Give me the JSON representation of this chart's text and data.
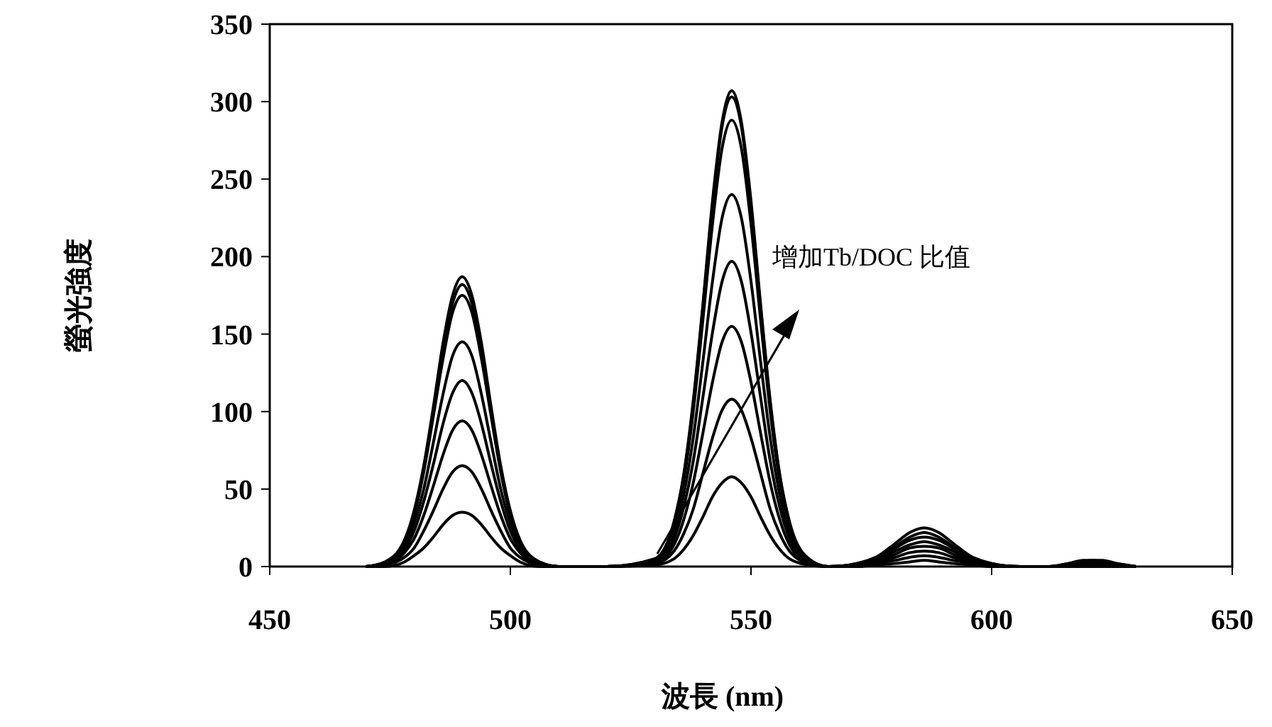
{
  "chart_data": {
    "type": "line",
    "xlabel": "波長 (nm)",
    "ylabel": "螢光強度",
    "xlim": [
      450,
      650
    ],
    "ylim": [
      0,
      350
    ],
    "xticks": [
      450,
      500,
      550,
      600,
      650
    ],
    "yticks": [
      0,
      50,
      100,
      150,
      200,
      250,
      300,
      350
    ],
    "grid": false,
    "marker": "none",
    "line_style": "solid",
    "annotations": [
      "增加Tb/DOC 比值"
    ],
    "x": [
      470,
      474,
      478,
      480,
      482,
      484,
      486,
      488,
      490,
      492,
      494,
      496,
      498,
      500,
      502,
      506,
      510,
      520,
      530,
      534,
      536,
      538,
      540,
      542,
      544,
      546,
      548,
      550,
      552,
      554,
      556,
      558,
      562,
      566,
      572,
      576,
      580,
      583,
      586,
      589,
      592,
      596,
      600,
      606,
      612,
      616,
      619,
      621,
      623,
      626,
      630
    ],
    "series": [
      {
        "color": "#000000",
        "values": [
          0,
          0,
          3,
          7,
          12,
          19,
          27,
          33,
          35,
          33,
          27,
          19,
          12,
          7,
          3,
          0,
          0,
          0,
          1,
          5,
          11,
          20,
          32,
          45,
          54,
          58,
          54,
          45,
          32,
          20,
          11,
          5,
          1,
          0,
          0,
          1,
          2,
          3,
          4,
          3,
          2,
          1,
          0,
          0,
          0,
          0,
          0,
          0,
          0,
          0,
          0
        ]
      },
      {
        "color": "#000000",
        "values": [
          0,
          1,
          6,
          12,
          23,
          36,
          50,
          61,
          65,
          61,
          50,
          36,
          23,
          12,
          6,
          1,
          0,
          0,
          2,
          10,
          21,
          37,
          60,
          83,
          101,
          108,
          101,
          83,
          60,
          37,
          21,
          10,
          2,
          0,
          0,
          2,
          4,
          6,
          7,
          6,
          4,
          2,
          0,
          0,
          0,
          0,
          1,
          1,
          1,
          0,
          0
        ]
      },
      {
        "color": "#000000",
        "values": [
          0,
          1,
          9,
          18,
          33,
          52,
          72,
          88,
          94,
          88,
          72,
          52,
          33,
          18,
          9,
          1,
          0,
          0,
          2,
          14,
          30,
          54,
          86,
          119,
          145,
          155,
          145,
          119,
          86,
          54,
          30,
          14,
          2,
          0,
          1,
          2,
          6,
          9,
          10,
          9,
          6,
          2,
          1,
          0,
          0,
          1,
          1,
          2,
          1,
          1,
          0
        ]
      },
      {
        "color": "#000000",
        "values": [
          0,
          2,
          11,
          23,
          42,
          66,
          92,
          112,
          120,
          112,
          92,
          66,
          42,
          23,
          11,
          2,
          0,
          0,
          3,
          18,
          38,
          68,
          109,
          151,
          184,
          197,
          184,
          151,
          109,
          68,
          38,
          18,
          3,
          0,
          1,
          3,
          8,
          12,
          13,
          12,
          8,
          3,
          1,
          0,
          0,
          1,
          2,
          2,
          2,
          1,
          0
        ]
      },
      {
        "color": "#000000",
        "values": [
          0,
          2,
          13,
          28,
          50,
          80,
          111,
          136,
          145,
          136,
          111,
          80,
          50,
          28,
          13,
          2,
          0,
          0,
          4,
          22,
          46,
          83,
          132,
          184,
          225,
          240,
          225,
          184,
          132,
          83,
          46,
          22,
          4,
          0,
          1,
          4,
          10,
          14,
          16,
          14,
          10,
          4,
          1,
          0,
          0,
          1,
          2,
          3,
          2,
          1,
          0
        ]
      },
      {
        "color": "#000000",
        "values": [
          0,
          3,
          16,
          33,
          61,
          97,
          134,
          164,
          175,
          164,
          134,
          97,
          61,
          33,
          16,
          3,
          0,
          0,
          4,
          27,
          55,
          100,
          159,
          221,
          270,
          288,
          270,
          221,
          159,
          100,
          55,
          27,
          4,
          0,
          1,
          5,
          12,
          17,
          19,
          17,
          12,
          5,
          1,
          0,
          0,
          1,
          3,
          3,
          3,
          1,
          0
        ]
      },
      {
        "color": "#000000",
        "values": [
          0,
          3,
          17,
          35,
          63,
          100,
          140,
          170,
          182,
          170,
          140,
          100,
          63,
          35,
          17,
          3,
          0,
          0,
          5,
          28,
          58,
          105,
          167,
          233,
          284,
          303,
          284,
          233,
          167,
          105,
          58,
          28,
          5,
          0,
          2,
          6,
          13,
          19,
          22,
          19,
          13,
          6,
          2,
          0,
          0,
          2,
          3,
          4,
          3,
          2,
          0
        ]
      },
      {
        "color": "#000000",
        "values": [
          0,
          3,
          17,
          36,
          65,
          103,
          144,
          175,
          187,
          175,
          144,
          103,
          65,
          36,
          17,
          3,
          0,
          0,
          5,
          29,
          59,
          107,
          169,
          236,
          287,
          307,
          287,
          236,
          169,
          107,
          59,
          29,
          5,
          0,
          2,
          6,
          15,
          22,
          25,
          22,
          15,
          6,
          2,
          0,
          0,
          2,
          4,
          4,
          4,
          2,
          0
        ]
      }
    ]
  }
}
